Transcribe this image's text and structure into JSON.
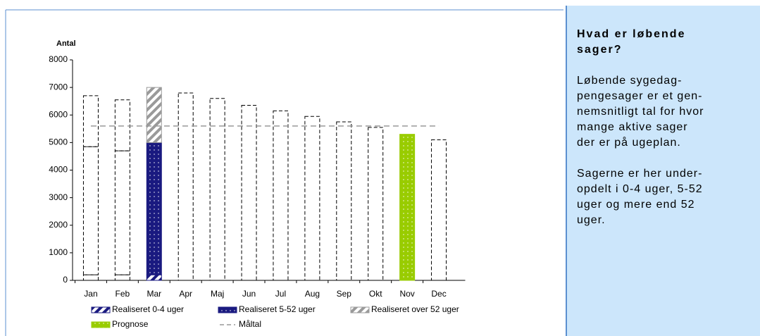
{
  "chart_data": {
    "type": "bar",
    "y_label": "Antal",
    "categories": [
      "Jan",
      "Feb",
      "Mar",
      "Apr",
      "Maj",
      "Jun",
      "Jul",
      "Aug",
      "Sep",
      "Okt",
      "Nov",
      "Dec"
    ],
    "ylim": [
      0,
      8000
    ],
    "yticks": [
      0,
      1000,
      2000,
      3000,
      4000,
      5000,
      6000,
      7000,
      8000
    ],
    "highlight": [
      2,
      10
    ],
    "series": [
      {
        "name": "Realiseret 0-4 uger",
        "type": "bar",
        "color": "#1a1a80",
        "pattern": "stripes",
        "values": [
          200,
          200,
          200,
          null,
          null,
          null,
          null,
          null,
          null,
          null,
          null,
          null
        ]
      },
      {
        "name": "Realiseret 5-52 uger",
        "type": "bar",
        "color": "#1a1a80",
        "pattern": "dots",
        "values": [
          4650,
          4500,
          4800,
          null,
          null,
          null,
          null,
          null,
          null,
          null,
          null,
          null
        ]
      },
      {
        "name": "Realiseret over 52 uger",
        "type": "bar",
        "color": "#9a9a9a",
        "pattern": "stripes",
        "values": [
          1850,
          1850,
          2000,
          null,
          null,
          null,
          null,
          null,
          null,
          null,
          null,
          null
        ]
      },
      {
        "name": "Prognose",
        "type": "bar",
        "color": "#99cc00",
        "pattern": "dots",
        "values": [
          null,
          null,
          null,
          6800,
          6600,
          6350,
          6150,
          5950,
          5750,
          5550,
          5300,
          5100
        ]
      },
      {
        "name": "Måltal",
        "type": "line",
        "color": "#999999",
        "values": [
          5600,
          5600,
          5600,
          5600,
          5600,
          5600,
          5600,
          5600,
          5600,
          5600,
          5600,
          5600
        ]
      }
    ]
  },
  "panel": {
    "title": [
      "Hvad er løbende",
      "sager?"
    ],
    "paragraphs": [
      [
        "Løbende sygedag-",
        "pengesager er et gen-",
        "nemsnitligt tal for hvor",
        "mange aktive sager",
        "der er på ugeplan."
      ],
      [
        "Sagerne er her under-",
        "opdelt i 0-4 uger, 5-52",
        "uger og mere end 52",
        "uger."
      ]
    ]
  }
}
